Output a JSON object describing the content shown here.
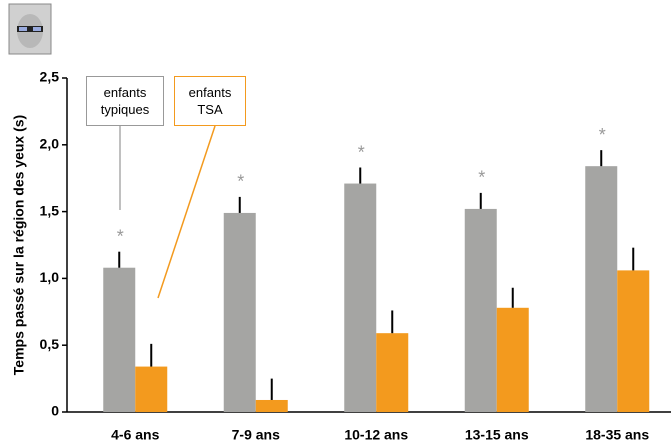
{
  "chart_data": {
    "type": "bar",
    "y_label": "Temps passé sur la région des yeux (s)",
    "categories": [
      "4-6 ans",
      "7-9 ans",
      "10-12 ans",
      "13-15 ans",
      "18-35 ans"
    ],
    "series": [
      {
        "name": "enfants typiques",
        "color": "#a5a5a3",
        "values": [
          1.08,
          1.49,
          1.71,
          1.52,
          1.84
        ],
        "errors": [
          0.12,
          0.12,
          0.12,
          0.12,
          0.12
        ]
      },
      {
        "name": "enfants TSA",
        "color": "#f39a1e",
        "values": [
          0.34,
          0.09,
          0.59,
          0.78,
          1.06
        ],
        "errors": [
          0.17,
          0.16,
          0.17,
          0.15,
          0.17
        ]
      }
    ],
    "annotations": [
      "*",
      "*",
      "*",
      "*",
      "*"
    ],
    "ylim": [
      0,
      2.5
    ],
    "yticks": [
      0,
      {
        "value": 0.5,
        "label": "0,5"
      },
      {
        "value": 1,
        "label": "1,0"
      },
      {
        "value": 1.5,
        "label": "1,5"
      },
      {
        "value": 2,
        "label": "2,0"
      },
      {
        "value": 2.5,
        "label": "2,5"
      }
    ]
  }
}
